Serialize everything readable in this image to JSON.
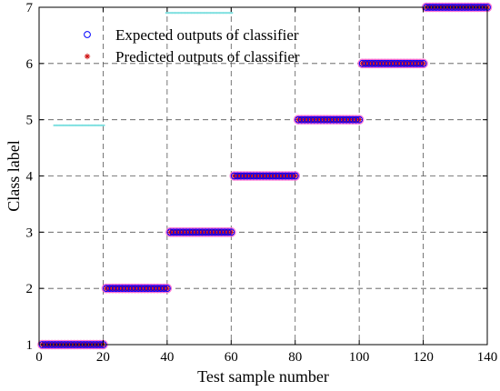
{
  "chart_data": {
    "type": "scatter",
    "title": "",
    "xlabel": "Test sample number",
    "ylabel": "Class label",
    "xlim": [
      0,
      140
    ],
    "ylim": [
      1,
      7
    ],
    "x_ticks": [
      "0",
      "20",
      "40",
      "60",
      "80",
      "100",
      "120",
      "140"
    ],
    "y_ticks": [
      "1",
      "2",
      "3",
      "4",
      "5",
      "6",
      "7"
    ],
    "grid": true,
    "legend_position": "top-left",
    "series": [
      {
        "name": "Expected outputs of classifier",
        "marker": "circle",
        "color": "#0000ff",
        "segments": [
          {
            "x_start": 1,
            "x_end": 20,
            "y": 1
          },
          {
            "x_start": 21,
            "x_end": 40,
            "y": 2
          },
          {
            "x_start": 41,
            "x_end": 60,
            "y": 3
          },
          {
            "x_start": 61,
            "x_end": 80,
            "y": 4
          },
          {
            "x_start": 81,
            "x_end": 100,
            "y": 5
          },
          {
            "x_start": 101,
            "x_end": 120,
            "y": 6
          },
          {
            "x_start": 121,
            "x_end": 140,
            "y": 7
          }
        ]
      },
      {
        "name": "Predicted outputs of classifier",
        "marker": "asterisk",
        "color": "#cc0000",
        "segments": [
          {
            "x_start": 1,
            "x_end": 20,
            "y": 1
          },
          {
            "x_start": 21,
            "x_end": 40,
            "y": 2
          },
          {
            "x_start": 41,
            "x_end": 60,
            "y": 3
          },
          {
            "x_start": 61,
            "x_end": 80,
            "y": 4
          },
          {
            "x_start": 81,
            "x_end": 100,
            "y": 5
          },
          {
            "x_start": 101,
            "x_end": 120,
            "y": 6
          },
          {
            "x_start": 121,
            "x_end": 140,
            "y": 7
          }
        ]
      }
    ],
    "faint_traces": [
      {
        "x_start": 5,
        "x_end": 20,
        "y": 4.9,
        "color": "#7fe0e0"
      },
      {
        "x_start": 40,
        "x_end": 60,
        "y": 6.9,
        "color": "#7fe0e0"
      }
    ]
  }
}
